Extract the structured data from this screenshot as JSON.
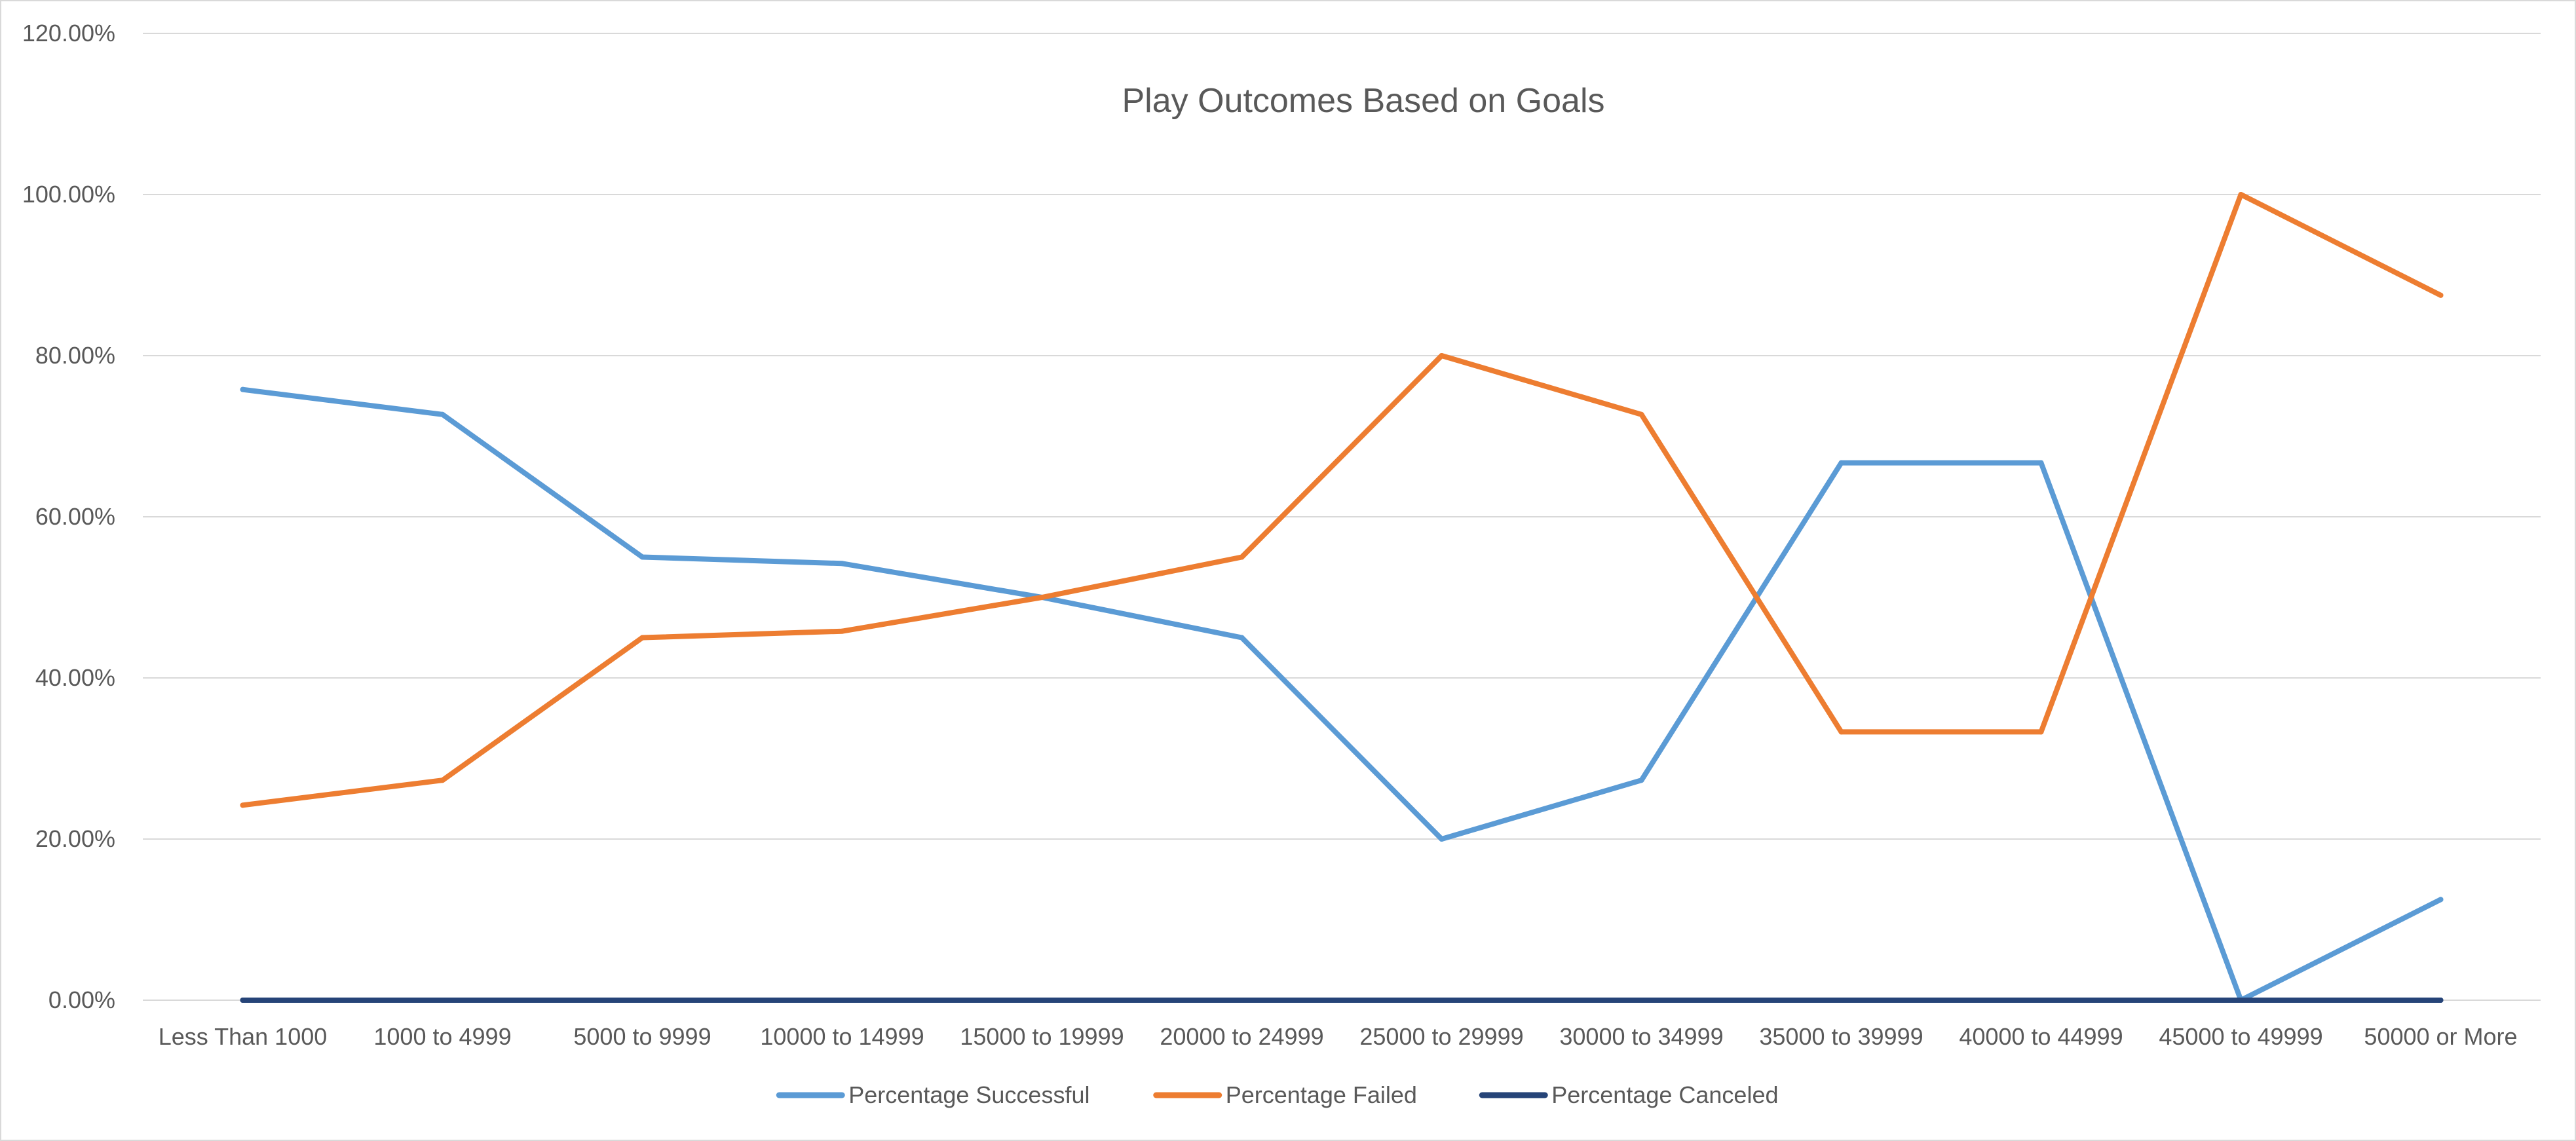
{
  "chart_data": {
    "type": "line",
    "title": "Play Outcomes Based on Goals",
    "xlabel": "",
    "ylabel": "",
    "ylim": [
      0,
      1.2
    ],
    "y_ticks": [
      0,
      0.2,
      0.4,
      0.6,
      0.8,
      1.0,
      1.2
    ],
    "y_tick_labels": [
      "0.00%",
      "20.00%",
      "40.00%",
      "60.00%",
      "80.00%",
      "100.00%",
      "120.00%"
    ],
    "categories": [
      "Less Than 1000",
      "1000 to 4999",
      "5000 to 9999",
      "10000 to 14999",
      "15000 to 19999",
      "20000 to 24999",
      "25000 to 29999",
      "30000 to 34999",
      "35000 to 39999",
      "40000 to 44999",
      "45000 to 49999",
      "50000 or More"
    ],
    "series": [
      {
        "name": "Percentage Successful",
        "color": "#5b9bd5",
        "values": [
          0.758,
          0.727,
          0.55,
          0.542,
          0.5,
          0.45,
          0.2,
          0.273,
          0.667,
          0.667,
          0.0,
          0.125
        ]
      },
      {
        "name": "Percentage Failed",
        "color": "#ed7d31",
        "values": [
          0.242,
          0.273,
          0.45,
          0.458,
          0.5,
          0.55,
          0.8,
          0.727,
          0.333,
          0.333,
          1.0,
          0.875
        ]
      },
      {
        "name": "Percentage Canceled",
        "color": "#264478",
        "values": [
          0,
          0,
          0,
          0,
          0,
          0,
          0,
          0,
          0,
          0,
          0,
          0
        ]
      }
    ],
    "grid": true,
    "legend_position": "bottom"
  }
}
